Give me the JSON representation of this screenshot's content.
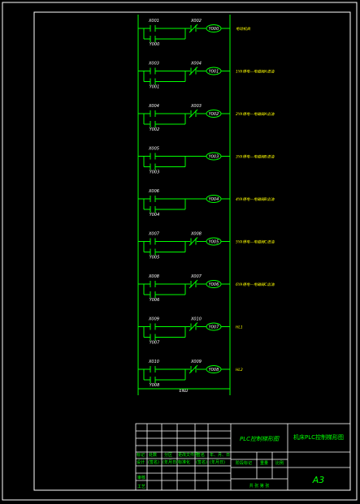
{
  "colors": {
    "background": "#000000",
    "frame": "#ffffff",
    "ladder": "#00ff00",
    "contact_label": "#ffffff",
    "coil_label": "#ffffff",
    "note": "#ffff00"
  },
  "ladder": {
    "end_label": "END",
    "rungs": [
      {
        "input": "X001",
        "interlock": "X002",
        "interlock_type": "NC",
        "hold": "Y000",
        "coil": "Y000",
        "note": "电动机启"
      },
      {
        "input": "X003",
        "interlock": "X004",
        "interlock_type": "NC",
        "hold": "Y001",
        "coil": "Y001",
        "note": "1YA得电—电磁阀A进油"
      },
      {
        "input": "X004",
        "interlock": "X003",
        "interlock_type": "NC",
        "hold": "Y002",
        "coil": "Y002",
        "note": "2YA得电—电磁阀A出油"
      },
      {
        "input": "X005",
        "interlock": "",
        "interlock_type": "",
        "hold": "Y003",
        "coil": "Y003",
        "note": "3YA得电—电磁阀B进油"
      },
      {
        "input": "X006",
        "interlock": "",
        "interlock_type": "",
        "hold": "Y004",
        "coil": "Y004",
        "note": "4YA得电—电磁阀B出油"
      },
      {
        "input": "X007",
        "interlock": "X008",
        "interlock_type": "NC",
        "hold": "Y005",
        "coil": "Y005",
        "note": "5YA得电—电磁阀C进油"
      },
      {
        "input": "X008",
        "interlock": "X007",
        "interlock_type": "NC",
        "hold": "Y006",
        "coil": "Y006",
        "note": "6YA得电—电磁阀C出油"
      },
      {
        "input": "X009",
        "interlock": "X010",
        "interlock_type": "NC",
        "hold": "Y007",
        "coil": "Y007",
        "note": "HL1"
      },
      {
        "input": "X010",
        "interlock": "X009",
        "interlock_type": "NC",
        "hold": "Y008",
        "coil": "Y008",
        "note": "HL2"
      }
    ]
  },
  "title_block": {
    "drawing_title": "PLC控制梯形图",
    "project_title": "机床PLC控制梯形图",
    "sheet_size": "A3",
    "rev_headers": [
      "标记",
      "处数",
      "分区",
      "更改文件号",
      "签名",
      "年、月、日"
    ],
    "sign_row": [
      "设计",
      "(签名)",
      "(年月日)",
      "标准化",
      "(签名)",
      "(年月日)"
    ],
    "stage_headers": [
      "阶段标记",
      "重量",
      "比例"
    ],
    "side_labels": [
      "审核",
      "工艺"
    ],
    "sheet_count": "共  张  第  张"
  }
}
